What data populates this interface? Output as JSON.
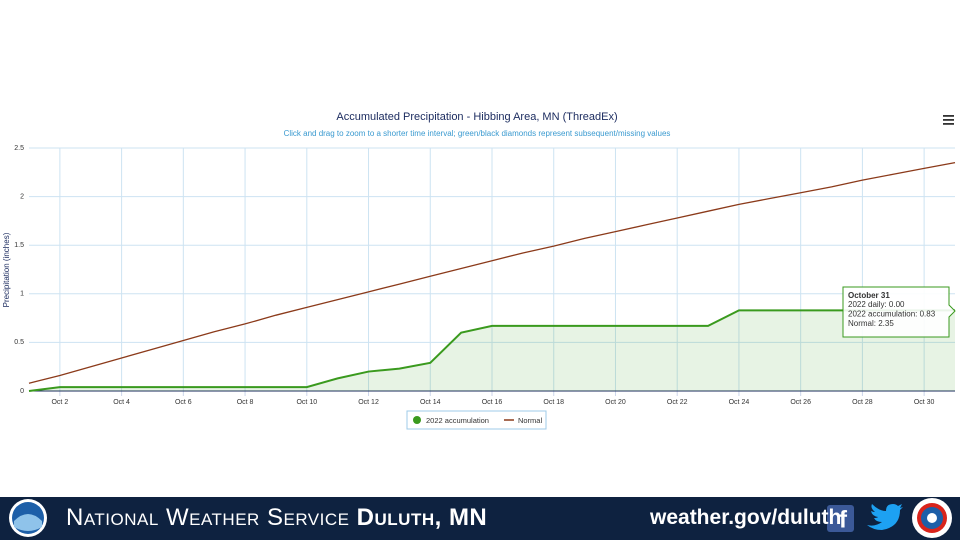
{
  "chart_data": {
    "type": "line",
    "title": "Accumulated Precipitation - Hibbing Area, MN (ThreadEx)",
    "subtitle": "Click and drag to zoom to a shorter time interval; green/black diamonds represent subsequent/missing values",
    "y_label": "Precipitation (inches)",
    "categories": [
      null,
      "Oct 2",
      null,
      "Oct 4",
      null,
      "Oct 6",
      null,
      "Oct 8",
      null,
      "Oct 10",
      null,
      "Oct 12",
      null,
      "Oct 14",
      null,
      "Oct 16",
      null,
      "Oct 18",
      null,
      "Oct 20",
      null,
      "Oct 22",
      null,
      "Oct 24",
      null,
      "Oct 26",
      null,
      "Oct 28",
      null,
      "Oct 30",
      null
    ],
    "series": [
      {
        "name": "2022 accumulation",
        "color": "#3a9a1e",
        "area": true,
        "values": [
          0,
          0.04,
          0.04,
          0.04,
          0.04,
          0.04,
          0.04,
          0.04,
          0.04,
          0.04,
          0.13,
          0.2,
          0.23,
          0.29,
          0.6,
          0.67,
          0.67,
          0.67,
          0.67,
          0.67,
          0.67,
          0.67,
          0.67,
          0.83,
          0.83,
          0.83,
          0.83,
          0.83,
          0.83,
          0.83,
          0.83
        ]
      },
      {
        "name": "Normal",
        "color": "#8b3a1a",
        "area": false,
        "values": [
          0.08,
          0.16,
          0.25,
          0.34,
          0.43,
          0.52,
          0.61,
          0.69,
          0.78,
          0.86,
          0.94,
          1.02,
          1.1,
          1.18,
          1.26,
          1.34,
          1.42,
          1.49,
          1.57,
          1.64,
          1.71,
          1.78,
          1.85,
          1.92,
          1.98,
          2.04,
          2.1,
          2.17,
          2.23,
          2.29,
          2.35
        ]
      }
    ],
    "ylim": [
      0,
      2.5
    ],
    "yticks": [
      0,
      0.5,
      1,
      1.5,
      2,
      2.5
    ],
    "grid": true,
    "tooltip": {
      "title": "October 31",
      "lines": [
        "2022 daily: 0.00",
        "2022 accumulation: 0.83",
        "Normal: 2.35"
      ]
    }
  },
  "footer": {
    "agency": "National Weather Service",
    "office": "Duluth, MN",
    "url": "weather.gov/duluth"
  }
}
